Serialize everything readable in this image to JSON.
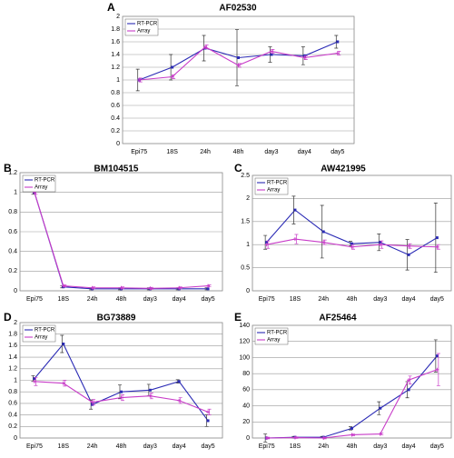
{
  "chart_data": [
    {
      "type": "line",
      "panel_label": "A",
      "title": "AF02530",
      "categories": [
        "Epi75",
        "18S",
        "24h",
        "48h",
        "day3",
        "day4",
        "day5"
      ],
      "series": [
        {
          "name": "RT-PCR",
          "color": "#2b2bb5",
          "values": [
            1,
            1.2,
            1.5,
            1.35,
            1.4,
            1.38,
            1.6
          ],
          "errors": [
            0.17,
            0.2,
            0.2,
            0.44,
            0.12,
            0.14,
            0.1
          ]
        },
        {
          "name": "Array",
          "color": "#c83cc8",
          "values": [
            1,
            1.05,
            1.52,
            1.23,
            1.45,
            1.35,
            1.42
          ],
          "errors": [
            0.03,
            0.03,
            0.03,
            0.03,
            0.03,
            0.03,
            0.03
          ]
        }
      ],
      "ylim": [
        0,
        2
      ],
      "yticks": [
        0,
        0.2,
        0.4,
        0.6,
        0.8,
        1,
        1.2,
        1.4,
        1.6,
        1.8,
        2
      ],
      "grid": true
    },
    {
      "type": "line",
      "panel_label": "B",
      "title": "BM104515",
      "categories": [
        "Epi75",
        "18S",
        "24h",
        "48h",
        "day3",
        "day4",
        "day5"
      ],
      "series": [
        {
          "name": "RT-PCR",
          "color": "#2b2bb5",
          "values": [
            1,
            0.04,
            0.02,
            0.02,
            0.02,
            0.02,
            0.02
          ],
          "errors": [
            0.02,
            0.01,
            0.01,
            0.01,
            0.01,
            0.01,
            0.01
          ]
        },
        {
          "name": "Array",
          "color": "#c83cc8",
          "values": [
            1,
            0.05,
            0.03,
            0.03,
            0.025,
            0.03,
            0.05
          ],
          "errors": [
            0.02,
            0.01,
            0.01,
            0.01,
            0.01,
            0.01,
            0.01
          ]
        }
      ],
      "ylim": [
        0,
        1.2
      ],
      "yticks": [
        0,
        0.2,
        0.4,
        0.6,
        0.8,
        1,
        1.2
      ],
      "grid": true
    },
    {
      "type": "line",
      "panel_label": "C",
      "title": "AW421995",
      "categories": [
        "Epi75",
        "18S",
        "24h",
        "48h",
        "day3",
        "day4",
        "day5"
      ],
      "series": [
        {
          "name": "RT-PCR",
          "color": "#2b2bb5",
          "values": [
            1.05,
            1.75,
            1.28,
            1.02,
            1.05,
            0.78,
            1.15
          ],
          "errors": [
            0.15,
            0.3,
            0.57,
            0.05,
            0.18,
            0.33,
            0.75
          ]
        },
        {
          "name": "Array",
          "color": "#c83cc8",
          "values": [
            1,
            1.12,
            1.05,
            0.95,
            1,
            0.97,
            0.95
          ],
          "errors": [
            0.08,
            0.1,
            0.05,
            0.05,
            0.08,
            0.05,
            0.05
          ]
        }
      ],
      "ylim": [
        0,
        2.5
      ],
      "yticks": [
        0,
        0.5,
        1,
        1.5,
        2,
        2.5
      ],
      "grid": true
    },
    {
      "type": "line",
      "panel_label": "D",
      "title": "BG73889",
      "categories": [
        "Epi75",
        "18S",
        "24h",
        "48h",
        "day3",
        "day4",
        "day5"
      ],
      "series": [
        {
          "name": "RT-PCR",
          "color": "#2b2bb5",
          "values": [
            1.03,
            1.63,
            0.58,
            0.8,
            0.83,
            0.98,
            0.3
          ],
          "errors": [
            0.05,
            0.15,
            0.08,
            0.12,
            0.1,
            0.03,
            0.1
          ]
        },
        {
          "name": "Array",
          "color": "#c83cc8",
          "values": [
            0.98,
            0.95,
            0.62,
            0.7,
            0.73,
            0.65,
            0.45
          ],
          "errors": [
            0.07,
            0.05,
            0.05,
            0.05,
            0.05,
            0.05,
            0.05
          ]
        }
      ],
      "ylim": [
        0,
        2
      ],
      "yticks": [
        0,
        0.2,
        0.4,
        0.6,
        0.8,
        1,
        1.2,
        1.4,
        1.6,
        1.8,
        2
      ],
      "grid": true
    },
    {
      "type": "line",
      "panel_label": "E",
      "title": "AF25464",
      "categories": [
        "Epi75",
        "18S",
        "24h",
        "48h",
        "day3",
        "day4",
        "day5"
      ],
      "series": [
        {
          "name": "RT-PCR",
          "color": "#2b2bb5",
          "values": [
            0,
            1,
            1,
            12,
            37,
            60,
            102
          ],
          "errors": [
            5,
            1,
            1,
            2,
            8,
            10,
            20
          ]
        },
        {
          "name": "Array",
          "color": "#c83cc8",
          "values": [
            0,
            0.5,
            0,
            4,
            5,
            72,
            85
          ],
          "errors": [
            1,
            1,
            1,
            1,
            1,
            5,
            20
          ]
        }
      ],
      "ylim": [
        0,
        140
      ],
      "yticks": [
        0,
        20,
        40,
        60,
        80,
        100,
        120,
        140
      ],
      "grid": true
    }
  ]
}
